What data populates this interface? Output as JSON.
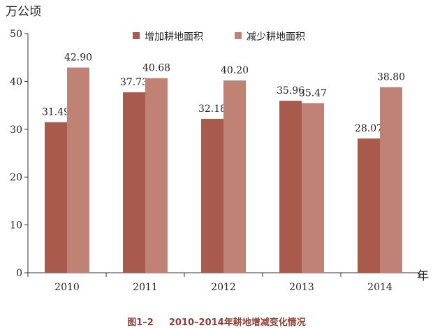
{
  "chart_data": {
    "type": "bar",
    "categories": [
      "2010",
      "2011",
      "2012",
      "2013",
      "2014"
    ],
    "series": [
      {
        "name": "增加耕地面积",
        "values": [
          31.49,
          37.73,
          32.18,
          35.96,
          28.07
        ],
        "color": "#a85a4c"
      },
      {
        "name": "减少耕地面积",
        "values": [
          42.9,
          40.68,
          40.2,
          35.47,
          38.8
        ],
        "color": "#c08274"
      }
    ],
    "ylabel": "万公顷",
    "xlabel": "年",
    "ylim": [
      0,
      50
    ],
    "yticks": [
      0,
      10,
      20,
      30,
      40,
      50
    ],
    "grid": false,
    "legend_position": "top-center",
    "data_labels": true
  },
  "caption": {
    "figure_number": "图1–2",
    "title": "2010–2014年耕地增减变化情况"
  }
}
